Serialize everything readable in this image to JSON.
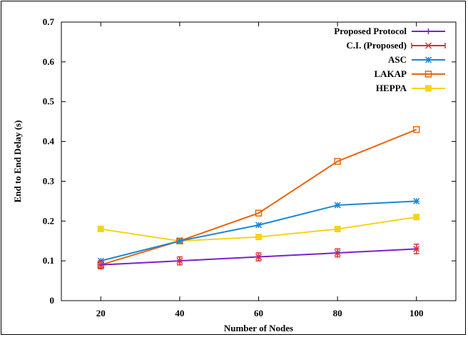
{
  "chart_data": {
    "type": "line",
    "title": "",
    "xlabel": "Number of Nodes",
    "ylabel": "End to End Delay (s)",
    "x": [
      20,
      40,
      60,
      80,
      100
    ],
    "xlim": [
      10,
      110
    ],
    "ylim": [
      0,
      0.7
    ],
    "xticks": [
      20,
      40,
      60,
      80,
      100
    ],
    "yticks": [
      0,
      0.1,
      0.2,
      0.3,
      0.4,
      0.5,
      0.6,
      0.7
    ],
    "ytick_labels": [
      "0",
      "0.1",
      "0.2",
      "0.3",
      "0.4",
      "0.5",
      "0.6",
      "0.7"
    ],
    "grid": false,
    "legend_position": "top-right",
    "series": [
      {
        "name": "Proposed Protocol",
        "color": "#7b1fd1",
        "marker": "plus",
        "values": [
          0.09,
          0.1,
          0.11,
          0.12,
          0.13
        ]
      },
      {
        "name": "C.I. (Proposed)",
        "color": "#d62f2f",
        "marker": "errorbar",
        "values": [
          0.09,
          0.1,
          0.11,
          0.12,
          0.13
        ],
        "errors": [
          0.01,
          0.01,
          0.01,
          0.01,
          0.012
        ]
      },
      {
        "name": "ASC",
        "color": "#1a86d6",
        "marker": "star",
        "values": [
          0.1,
          0.15,
          0.19,
          0.24,
          0.25
        ]
      },
      {
        "name": "LAKAP",
        "color": "#e8640c",
        "marker": "square-open",
        "values": [
          0.09,
          0.15,
          0.22,
          0.35,
          0.43
        ]
      },
      {
        "name": "HEPPA",
        "color": "#f4d41a",
        "marker": "square-filled",
        "values": [
          0.18,
          0.15,
          0.16,
          0.18,
          0.21
        ]
      }
    ]
  }
}
